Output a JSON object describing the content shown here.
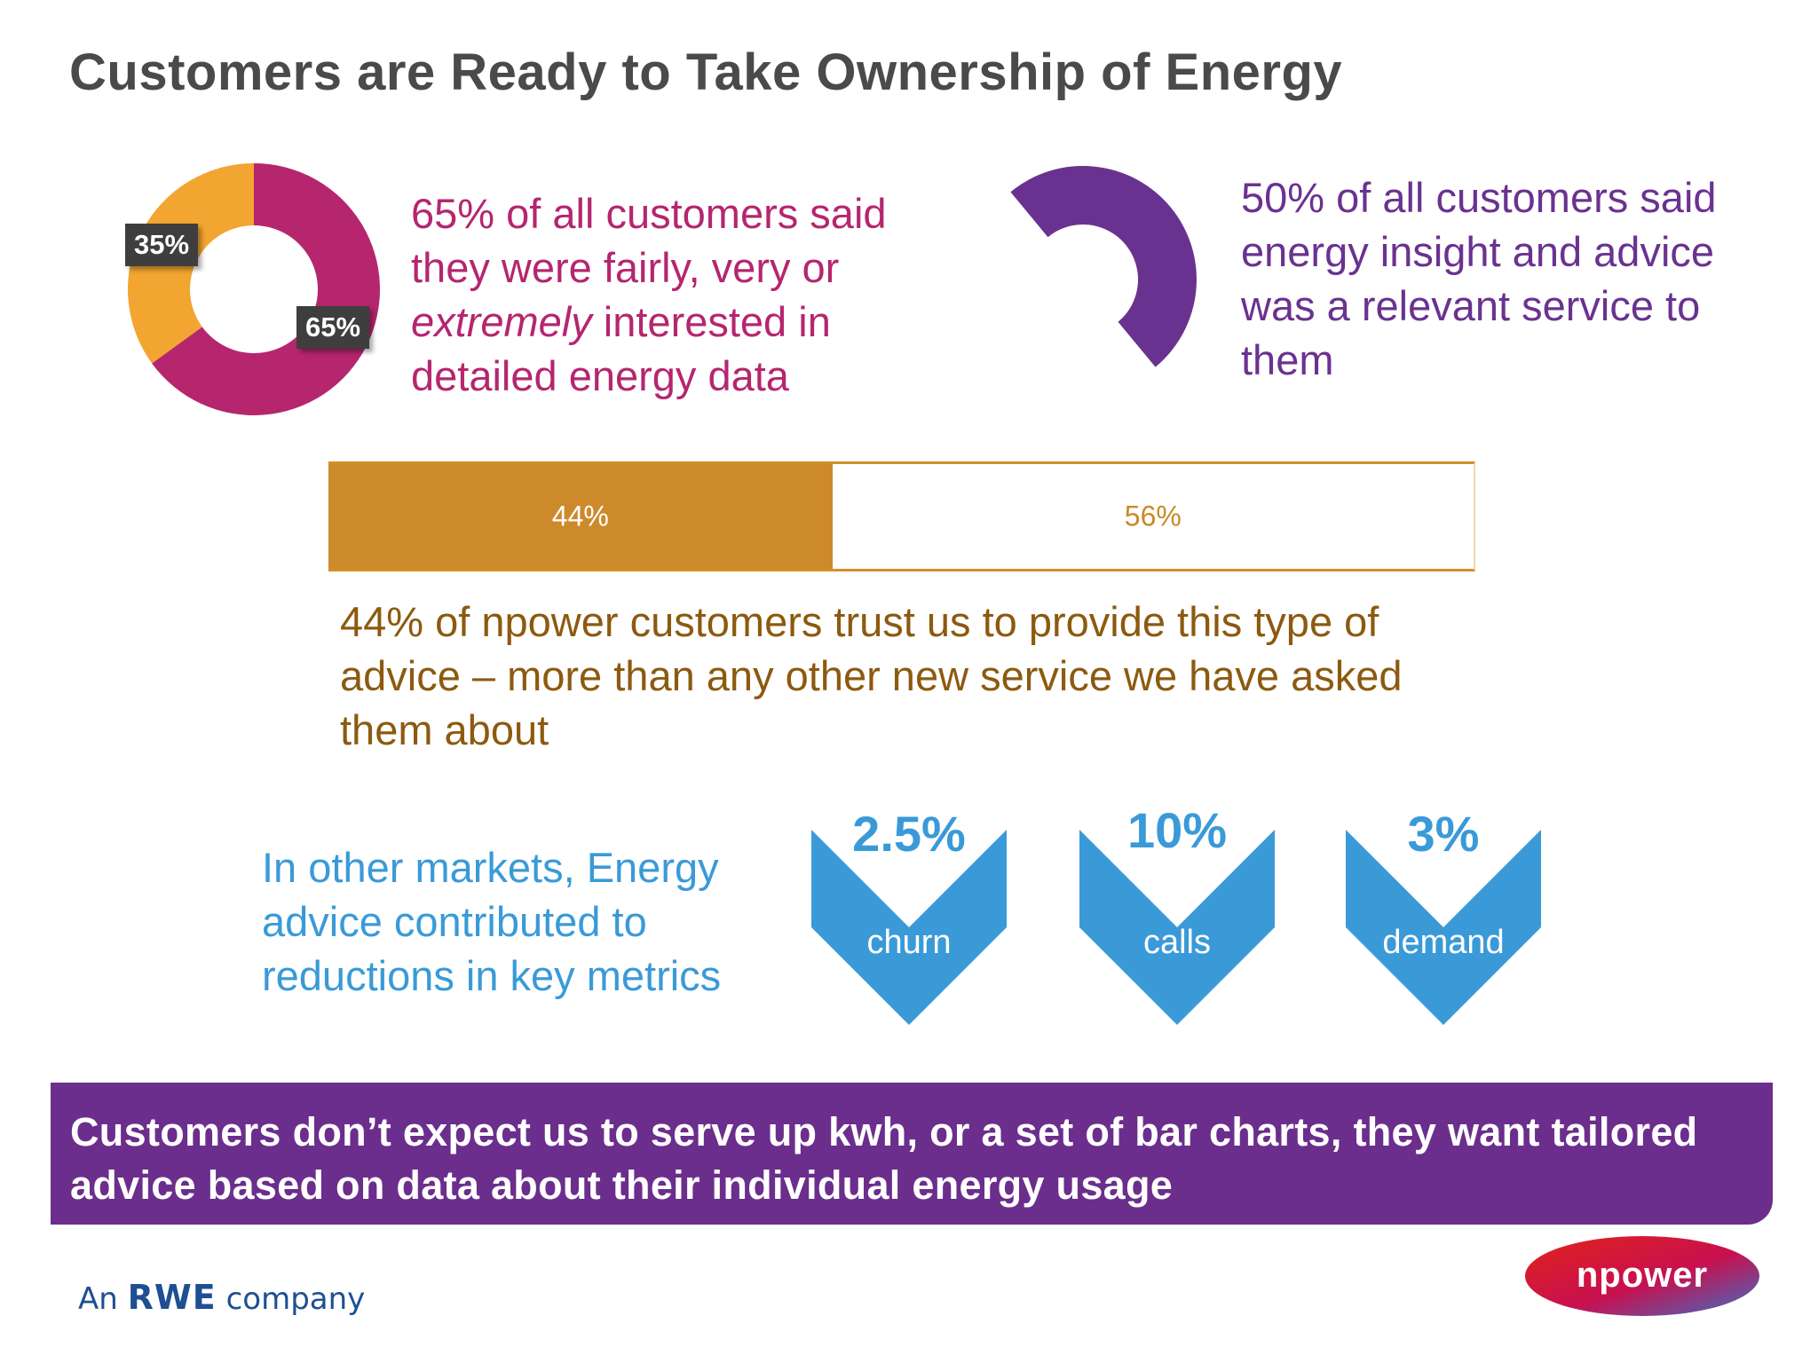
{
  "title": "Customers are Ready to Take Ownership of Energy",
  "stat1": {
    "text_before": "65% of all customers said they were fairly, very or ",
    "text_emph": "extremely",
    "text_after": " interested in detailed energy data"
  },
  "stat2": {
    "text": "50% of all customers said energy insight and advice was a relevant service to them"
  },
  "stat3": {
    "text": "44% of npower customers trust us to provide this type of advice – more than any other new service we have asked them about"
  },
  "stat4": {
    "text": "In other markets, Energy advice contributed to reductions in key metrics"
  },
  "banner": {
    "text": "Customers don’t expect us to serve up kwh, or a set of bar charts, they want tailored advice based on data about their individual energy usage"
  },
  "logos": {
    "rwe_an": "An",
    "rwe_name": "RWE",
    "rwe_company": "company",
    "npower": "npower"
  },
  "colors": {
    "magenta": "#b5266f",
    "orange": "#f2a531",
    "purple": "#6a3290",
    "gold": "#cd8a2b",
    "blue": "#3a9ad8"
  },
  "chart_data": [
    {
      "type": "pie",
      "variant": "donut",
      "categories": [
        "",
        ""
      ],
      "values": [
        65,
        35
      ],
      "labels": [
        "65%",
        "35%"
      ],
      "colors": [
        "#b5266f",
        "#f2a531"
      ]
    },
    {
      "type": "pie",
      "variant": "partial-donut",
      "values": [
        50
      ],
      "colors": [
        "#6a3290"
      ]
    },
    {
      "type": "bar",
      "variant": "stacked-horizontal",
      "values": [
        44,
        56
      ],
      "labels": [
        "44%",
        "56%"
      ],
      "colors": [
        "#cd8a2b",
        "#ffffff"
      ]
    },
    {
      "type": "bar",
      "variant": "reduction-chevrons",
      "categories": [
        "churn",
        "calls",
        "demand"
      ],
      "values": [
        2.5,
        10,
        3
      ],
      "labels": [
        "2.5%",
        "10%",
        "3%"
      ]
    }
  ]
}
